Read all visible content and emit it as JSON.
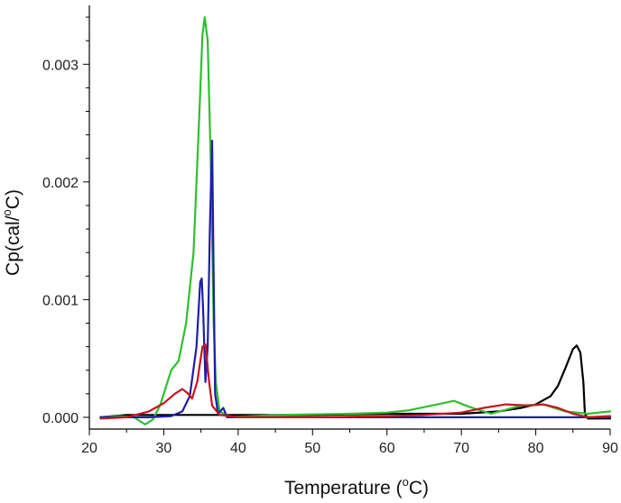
{
  "chart_data": {
    "type": "line",
    "xlabel_main": "Temperature (",
    "xlabel_sup": "o",
    "xlabel_tail": "C)",
    "ylabel_main": "Cp(cal/",
    "ylabel_sup": "o",
    "ylabel_tail": "C)",
    "xlim": [
      20,
      90
    ],
    "ylim": [
      -0.0001,
      0.0035
    ],
    "xticks": [
      20,
      30,
      40,
      50,
      60,
      70,
      80,
      90
    ],
    "yticks": [
      0.0,
      0.001,
      0.002,
      0.003
    ],
    "ytick_labels": [
      "0.000",
      "0.001",
      "0.002",
      "0.003"
    ],
    "grid": false,
    "series": [
      {
        "color": "#000000",
        "points": [
          [
            21.5,
            0.0
          ],
          [
            25,
            2e-05
          ],
          [
            30,
            2e-05
          ],
          [
            35,
            2e-05
          ],
          [
            40,
            2e-05
          ],
          [
            50,
            2e-05
          ],
          [
            60,
            3e-05
          ],
          [
            65,
            3e-05
          ],
          [
            70,
            3e-05
          ],
          [
            75,
            5e-05
          ],
          [
            78,
            8e-05
          ],
          [
            80,
            0.00011
          ],
          [
            82,
            0.00018
          ],
          [
            83,
            0.00027
          ],
          [
            84,
            0.00042
          ],
          [
            85,
            0.00058
          ],
          [
            85.5,
            0.00061
          ],
          [
            86,
            0.00055
          ],
          [
            86.4,
            0.0003
          ],
          [
            86.6,
            3e-05
          ],
          [
            87,
            -1e-05
          ],
          [
            90,
            -1e-05
          ]
        ]
      },
      {
        "color": "#2fbf2f",
        "points": [
          [
            21.5,
            0.0
          ],
          [
            24,
            1e-05
          ],
          [
            26,
            0.0
          ],
          [
            27.5,
            -6e-05
          ],
          [
            28.5,
            -2e-05
          ],
          [
            29.5,
            0.0001
          ],
          [
            31,
            0.0004
          ],
          [
            32,
            0.00048
          ],
          [
            33,
            0.0008
          ],
          [
            34,
            0.0014
          ],
          [
            34.8,
            0.0026
          ],
          [
            35.2,
            0.00325
          ],
          [
            35.5,
            0.0034
          ],
          [
            35.9,
            0.0032
          ],
          [
            36.3,
            0.0022
          ],
          [
            36.7,
            0.0008
          ],
          [
            37,
            0.0003
          ],
          [
            37.5,
            5e-05
          ],
          [
            39,
            0.0
          ],
          [
            45,
            2e-05
          ],
          [
            55,
            3e-05
          ],
          [
            60,
            4e-05
          ],
          [
            63,
            6e-05
          ],
          [
            66,
            0.0001
          ],
          [
            69,
            0.00014
          ],
          [
            71,
            9e-05
          ],
          [
            74,
            3e-05
          ],
          [
            78,
            0.0001
          ],
          [
            81,
            0.00011
          ],
          [
            84,
            5e-05
          ],
          [
            87,
            3e-05
          ],
          [
            90,
            5e-05
          ]
        ]
      },
      {
        "color": "#1e1ea8",
        "points": [
          [
            21.5,
            0.0
          ],
          [
            28,
            0.0
          ],
          [
            31,
            1e-05
          ],
          [
            32.5,
            5e-05
          ],
          [
            33.5,
            0.00018
          ],
          [
            34.4,
            0.0006
          ],
          [
            34.9,
            0.00115
          ],
          [
            35.1,
            0.00118
          ],
          [
            35.3,
            0.0009
          ],
          [
            35.6,
            0.0003
          ],
          [
            35.9,
            0.0006
          ],
          [
            36.2,
            0.0016
          ],
          [
            36.5,
            0.00235
          ],
          [
            36.7,
            0.0012
          ],
          [
            36.9,
            0.0002
          ],
          [
            37.3,
            3e-05
          ],
          [
            38,
            8e-05
          ],
          [
            38.5,
            0.0
          ],
          [
            45,
            0.0
          ],
          [
            60,
            0.0
          ],
          [
            70,
            0.0
          ],
          [
            80,
            0.0
          ],
          [
            90,
            0.0
          ]
        ]
      },
      {
        "color": "#c8141e",
        "points": [
          [
            21.5,
            -1e-05
          ],
          [
            25,
            0.0
          ],
          [
            28,
            5e-05
          ],
          [
            30,
            0.00012
          ],
          [
            31.5,
            0.0002
          ],
          [
            32.5,
            0.00024
          ],
          [
            33.3,
            0.0002
          ],
          [
            33.8,
            0.00016
          ],
          [
            34.5,
            0.0003
          ],
          [
            35.2,
            0.0006
          ],
          [
            35.6,
            0.00062
          ],
          [
            36.1,
            0.0003
          ],
          [
            36.5,
            0.0001
          ],
          [
            37.5,
            2e-05
          ],
          [
            40,
            0.0
          ],
          [
            50,
            0.0
          ],
          [
            60,
            1e-05
          ],
          [
            65,
            2e-05
          ],
          [
            70,
            4e-05
          ],
          [
            73,
            8e-05
          ],
          [
            76,
            0.00011
          ],
          [
            79,
            0.0001
          ],
          [
            81,
            0.00011
          ],
          [
            83,
            8e-05
          ],
          [
            85,
            3e-05
          ],
          [
            87,
            0.0
          ],
          [
            90,
            1e-05
          ]
        ]
      }
    ]
  }
}
